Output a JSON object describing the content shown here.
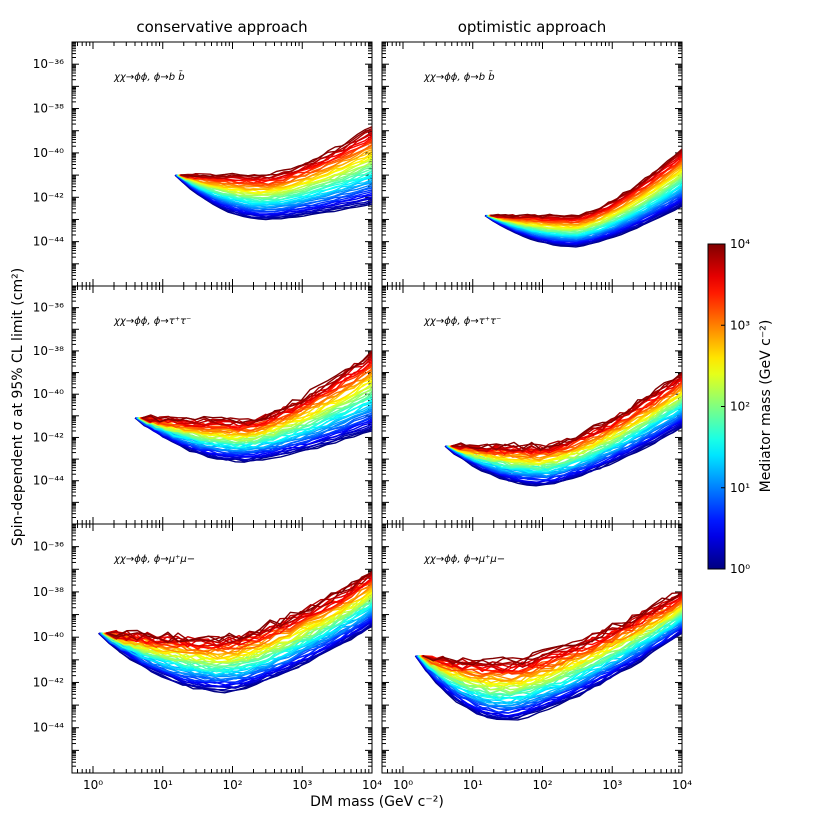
{
  "figure": {
    "column_titles": [
      "conservative approach",
      "optimistic approach"
    ],
    "xlabel": "DM mass (GeV c⁻²)",
    "ylabel": "Spin-dependent σ at 95% CL limit (cm²)"
  },
  "colorbar": {
    "label": "Mediator mass (GeV c⁻²)",
    "scale": "log",
    "range": [
      1,
      10000
    ],
    "ticks": [
      "10⁰",
      "10¹",
      "10²",
      "10³",
      "10⁴"
    ],
    "colormap": "jet",
    "colors": [
      "#00007f",
      "#0000ff",
      "#007fff",
      "#00ffff",
      "#7fff7f",
      "#ffff00",
      "#ff7f00",
      "#ff0000",
      "#7f0000"
    ]
  },
  "chart_data": [
    {
      "type": "line",
      "row": 0,
      "col": 0,
      "title": "conservative approach",
      "annotation": "χχ→ϕϕ, ϕ→b b̄",
      "xlabel": "",
      "ylabel": "",
      "xscale": "log",
      "yscale": "log",
      "xlim": [
        0.5,
        10000
      ],
      "ylim": [
        1e-46,
        1e-35
      ],
      "xticks": [
        "10⁰",
        "10¹",
        "10²",
        "10³",
        "10⁴"
      ],
      "yticks": [
        "10⁻³⁶",
        "10⁻³⁸",
        "10⁻⁴⁰",
        "10⁻⁴²",
        "10⁻⁴⁴"
      ],
      "series_count": 45,
      "mediator_mass_range": [
        1,
        10000
      ],
      "envelope": {
        "start_x": 15,
        "x_min_at": 300,
        "end_x": 10000,
        "lowest_curve": {
          "start_y": 1e-41,
          "min_y": 1e-43,
          "end_y": 5e-43
        },
        "highest_curve": {
          "start_y": 1e-41,
          "min_y": 1e-41,
          "end_y": 1.5e-39
        }
      },
      "noise": 0.06
    },
    {
      "type": "line",
      "row": 0,
      "col": 1,
      "title": "optimistic approach",
      "annotation": "χχ→ϕϕ, ϕ→b b̄",
      "xlabel": "",
      "ylabel": "",
      "xscale": "log",
      "yscale": "log",
      "xlim": [
        0.5,
        10000
      ],
      "ylim": [
        1e-46,
        1e-35
      ],
      "xticks": [
        "10⁰",
        "10¹",
        "10²",
        "10³",
        "10⁴"
      ],
      "yticks": [
        "10⁻³⁶",
        "10⁻³⁸",
        "10⁻⁴⁰",
        "10⁻⁴²",
        "10⁻⁴⁴"
      ],
      "series_count": 45,
      "mediator_mass_range": [
        1,
        10000
      ],
      "envelope": {
        "start_x": 15,
        "x_min_at": 300,
        "end_x": 10000,
        "lowest_curve": {
          "start_y": 1.5e-43,
          "min_y": 6e-45,
          "end_y": 4e-43
        },
        "highest_curve": {
          "start_y": 1.5e-43,
          "min_y": 1.5e-43,
          "end_y": 1.5e-40
        }
      },
      "noise": 0.05
    },
    {
      "type": "line",
      "row": 1,
      "col": 0,
      "title": "",
      "annotation": "χχ→ϕϕ, ϕ→τ⁺τ⁻",
      "xlabel": "",
      "ylabel": "",
      "xscale": "log",
      "yscale": "log",
      "xlim": [
        0.5,
        10000
      ],
      "ylim": [
        1e-46,
        1e-35
      ],
      "xticks": [
        "10⁰",
        "10¹",
        "10²",
        "10³",
        "10⁴"
      ],
      "yticks": [
        "10⁻³⁶",
        "10⁻³⁸",
        "10⁻⁴⁰",
        "10⁻⁴²",
        "10⁻⁴⁴"
      ],
      "series_count": 50,
      "mediator_mass_range": [
        1,
        10000
      ],
      "envelope": {
        "start_x": 4,
        "x_min_at": 150,
        "end_x": 10000,
        "lowest_curve": {
          "start_y": 8e-42,
          "min_y": 8e-44,
          "end_y": 2e-42
        },
        "highest_curve": {
          "start_y": 8e-42,
          "min_y": 6e-42,
          "end_y": 1e-38
        }
      },
      "noise": 0.12
    },
    {
      "type": "line",
      "row": 1,
      "col": 1,
      "title": "",
      "annotation": "χχ→ϕϕ, ϕ→τ⁺τ⁻",
      "xlabel": "",
      "ylabel": "",
      "xscale": "log",
      "yscale": "log",
      "xlim": [
        0.5,
        10000
      ],
      "ylim": [
        1e-46,
        1e-35
      ],
      "xticks": [
        "10⁰",
        "10¹",
        "10²",
        "10³",
        "10⁴"
      ],
      "yticks": [
        "10⁻³⁶",
        "10⁻³⁸",
        "10⁻⁴⁰",
        "10⁻⁴²",
        "10⁻⁴⁴"
      ],
      "series_count": 50,
      "mediator_mass_range": [
        1,
        10000
      ],
      "envelope": {
        "start_x": 4,
        "x_min_at": 100,
        "end_x": 10000,
        "lowest_curve": {
          "start_y": 4e-43,
          "min_y": 6e-45,
          "end_y": 3e-42
        },
        "highest_curve": {
          "start_y": 4e-43,
          "min_y": 4e-43,
          "end_y": 1e-39
        }
      },
      "noise": 0.12
    },
    {
      "type": "line",
      "row": 2,
      "col": 0,
      "title": "",
      "annotation": "χχ→ϕϕ, ϕ→μ⁺μ−",
      "xlabel": "DM mass (GeV c⁻²)",
      "ylabel": "",
      "xscale": "log",
      "yscale": "log",
      "xlim": [
        0.5,
        10000
      ],
      "ylim": [
        1e-46,
        1e-35
      ],
      "xticks": [
        "10⁰",
        "10¹",
        "10²",
        "10³",
        "10⁴"
      ],
      "yticks": [
        "10⁻³⁶",
        "10⁻³⁸",
        "10⁻⁴⁰",
        "10⁻⁴²",
        "10⁻⁴⁴"
      ],
      "series_count": 55,
      "mediator_mass_range": [
        1,
        10000
      ],
      "envelope": {
        "start_x": 1.2,
        "x_min_at": 80,
        "end_x": 10000,
        "lowest_curve": {
          "start_y": 1.5e-40,
          "min_y": 4e-43,
          "end_y": 3e-40
        },
        "highest_curve": {
          "start_y": 1.5e-40,
          "min_y": 1e-40,
          "end_y": 8e-38
        }
      },
      "noise": 0.16
    },
    {
      "type": "line",
      "row": 2,
      "col": 1,
      "title": "",
      "annotation": "χχ→ϕϕ, ϕ→μ⁺μ−",
      "xlabel": "DM mass (GeV c⁻²)",
      "ylabel": "",
      "xscale": "log",
      "yscale": "log",
      "xlim": [
        0.5,
        10000
      ],
      "ylim": [
        1e-46,
        1e-35
      ],
      "xticks": [
        "10⁰",
        "10¹",
        "10²",
        "10³",
        "10⁴"
      ],
      "yticks": [
        "10⁻³⁶",
        "10⁻³⁸",
        "10⁻⁴⁰",
        "10⁻⁴²",
        "10⁻⁴⁴"
      ],
      "series_count": 55,
      "mediator_mass_range": [
        1,
        10000
      ],
      "envelope": {
        "start_x": 1.5,
        "x_min_at": 30,
        "end_x": 10000,
        "lowest_curve": {
          "start_y": 1.5e-41,
          "min_y": 2e-44,
          "end_y": 1.5e-40
        },
        "highest_curve": {
          "start_y": 1.5e-41,
          "min_y": 8e-42,
          "end_y": 1e-38
        }
      },
      "noise": 0.16
    }
  ]
}
